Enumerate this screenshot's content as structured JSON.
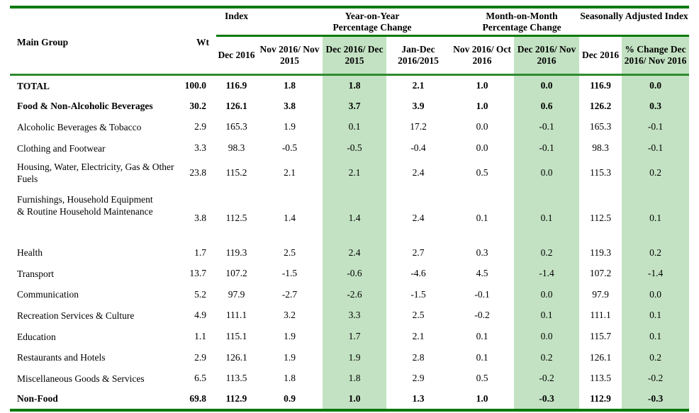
{
  "header": {
    "main_group": "Main Group",
    "wt": "Wt",
    "index_group": "Index",
    "yoy_group": "Year-on-Year Percentage Change",
    "mom_group": "Month-on-Month Percentage Change",
    "sa_group": "Seasonally Adjusted Index",
    "columns": [
      "Dec 2016",
      "Nov 2016/ Nov 2015",
      "Dec 2016/ Dec 2015",
      "Jan-Dec 2016/2015",
      "Nov 2016/ Oct 2016",
      "Dec 2016/ Nov 2016",
      "Dec 2016",
      "% Change Dec 2016/ Nov 2016"
    ]
  },
  "colors": {
    "accent_line": "#0b7a0b",
    "highlight": "#c3e2c3"
  },
  "rows": [
    {
      "label": "TOTAL",
      "bold": true,
      "values": [
        "100.0",
        "116.9",
        "1.8",
        "1.8",
        "2.1",
        "1.0",
        "0.0",
        "116.9",
        "0.0"
      ]
    },
    {
      "label": "Food & Non-Alcoholic Beverages",
      "bold": true,
      "values": [
        "30.2",
        "126.1",
        "3.8",
        "3.7",
        "3.9",
        "1.0",
        "0.6",
        "126.2",
        "0.3"
      ]
    },
    {
      "label": "Alcoholic Beverages & Tobacco",
      "values": [
        "2.9",
        "165.3",
        "1.9",
        "0.1",
        "17.2",
        "0.0",
        "-0.1",
        "165.3",
        "-0.1"
      ]
    },
    {
      "label": "Clothing and Footwear",
      "values": [
        "3.3",
        "98.3",
        "-0.5",
        "-0.5",
        "-0.4",
        "0.0",
        "-0.1",
        "98.3",
        "-0.1"
      ]
    },
    {
      "label": "Housing, Water, Electricity, Gas & Other Fuels",
      "lines": 2,
      "values": [
        "23.8",
        "115.2",
        "2.1",
        "2.1",
        "2.4",
        "0.5",
        "0.0",
        "115.3",
        "0.2"
      ]
    },
    {
      "label": "Furnishings, Household Equipment  & Routine Household Maintenance",
      "lines": 3,
      "values": [
        "3.8",
        "112.5",
        "1.4",
        "1.4",
        "2.4",
        "0.1",
        "0.1",
        "112.5",
        "0.1"
      ]
    },
    {
      "label": "Health",
      "values": [
        "1.7",
        "119.3",
        "2.5",
        "2.4",
        "2.7",
        "0.3",
        "0.2",
        "119.3",
        "0.2"
      ]
    },
    {
      "label": "Transport",
      "values": [
        "13.7",
        "107.2",
        "-1.5",
        "-0.6",
        "-4.6",
        "4.5",
        "-1.4",
        "107.2",
        "-1.4"
      ]
    },
    {
      "label": "Communication",
      "values": [
        "5.2",
        "97.9",
        "-2.7",
        "-2.6",
        "-1.5",
        "-0.1",
        "0.0",
        "97.9",
        "0.0"
      ]
    },
    {
      "label": "Recreation Services & Culture",
      "values": [
        "4.9",
        "111.1",
        "3.2",
        "3.3",
        "2.5",
        "-0.2",
        "0.1",
        "111.1",
        "0.1"
      ]
    },
    {
      "label": "Education",
      "values": [
        "1.1",
        "115.1",
        "1.9",
        "1.7",
        "2.1",
        "0.1",
        "0.0",
        "115.7",
        "0.1"
      ]
    },
    {
      "label": "Restaurants and Hotels",
      "values": [
        "2.9",
        "126.1",
        "1.9",
        "1.9",
        "2.8",
        "0.1",
        "0.2",
        "126.1",
        "0.2"
      ]
    },
    {
      "label": "Miscellaneous Goods & Services",
      "values": [
        "6.5",
        "113.5",
        "1.8",
        "1.8",
        "2.9",
        "0.5",
        "-0.2",
        "113.5",
        "-0.2"
      ]
    },
    {
      "label": "Non-Food",
      "bold": true,
      "values": [
        "69.8",
        "112.9",
        "0.9",
        "1.0",
        "1.3",
        "1.0",
        "-0.3",
        "112.9",
        "-0.3"
      ]
    }
  ]
}
